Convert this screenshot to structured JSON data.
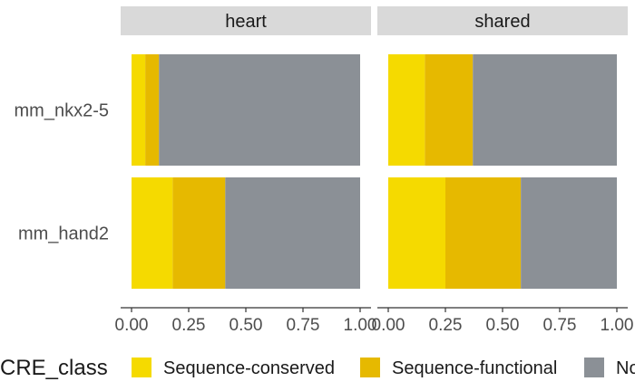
{
  "chart_data": {
    "type": "bar",
    "orientation": "horizontal",
    "stacked": "fill",
    "facets": [
      "heart",
      "shared"
    ],
    "categories": [
      "mm_nkx2-5",
      "mm_hand2"
    ],
    "series": [
      {
        "name": "Sequence-conserved",
        "color": "#f5da00",
        "values": {
          "heart": [
            0.06,
            0.18
          ],
          "shared": [
            0.16,
            0.25
          ]
        }
      },
      {
        "name": "Sequence-functional",
        "color": "#e6b900",
        "values": {
          "heart": [
            0.06,
            0.23
          ],
          "shared": [
            0.21,
            0.33
          ]
        }
      },
      {
        "name": "Not conserved",
        "color": "#8b9096",
        "values": {
          "heart": [
            0.88,
            0.59
          ],
          "shared": [
            0.63,
            0.42
          ]
        }
      }
    ],
    "xlim": [
      0,
      1
    ],
    "xticks": [
      0,
      0.25,
      0.5,
      0.75,
      1
    ],
    "xtick_labels": [
      "0.00",
      "0.25",
      "0.50",
      "0.75",
      "1.00"
    ],
    "xlabel": "",
    "ylabel": "",
    "legend": {
      "title": "CRE_class",
      "position": "bottom",
      "entries": [
        "Sequence-conserved",
        "Sequence-functional",
        "Not conserved"
      ]
    },
    "grid": false,
    "strip_color": "#d9d9d9"
  }
}
